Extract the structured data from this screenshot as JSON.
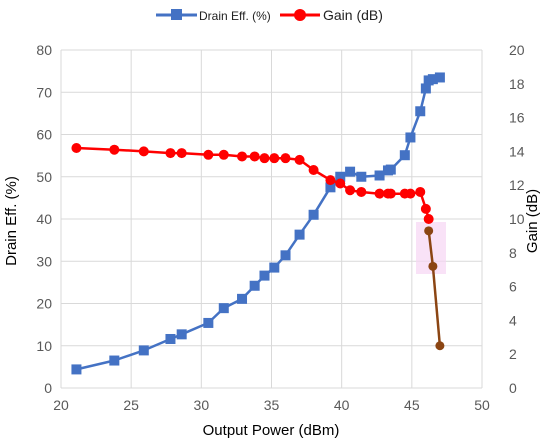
{
  "chart_data": {
    "type": "line",
    "xlabel": "Output Power (dBm)",
    "ylabel_left": "Drain Eff. (%)",
    "ylabel_right": "Gain (dB)",
    "xlim": [
      20,
      50
    ],
    "ylim_left": [
      0,
      80
    ],
    "ylim_right": [
      0,
      20
    ],
    "x_ticks": [
      "20",
      "25",
      "30",
      "35",
      "40",
      "45",
      "50"
    ],
    "y_left_ticks": [
      "0",
      "10",
      "20",
      "30",
      "40",
      "50",
      "60",
      "70",
      "80"
    ],
    "y_right_ticks": [
      "0",
      "2",
      "4",
      "6",
      "8",
      "10",
      "12",
      "14",
      "16",
      "18",
      "20"
    ],
    "grid": true,
    "legend_position": "top",
    "series": [
      {
        "name": "Drain Eff. (%)",
        "axis": "left",
        "color": "#4472c4",
        "marker": "square",
        "x": [
          21.1,
          23.8,
          25.9,
          27.8,
          28.6,
          30.5,
          31.6,
          32.9,
          33.8,
          34.5,
          35.2,
          36.0,
          37.0,
          38.0,
          39.2,
          39.9,
          40.6,
          41.4,
          42.7,
          43.3,
          43.5,
          44.5,
          44.9,
          45.6,
          46.0,
          46.2,
          46.5,
          47.0
        ],
        "y": [
          4.4,
          6.5,
          8.9,
          11.6,
          12.7,
          15.4,
          18.9,
          21.1,
          24.2,
          26.6,
          28.5,
          31.4,
          36.3,
          41.0,
          47.5,
          50.0,
          51.2,
          50.0,
          50.3,
          51.5,
          51.7,
          55.1,
          59.3,
          65.5,
          70.9,
          72.8,
          73.1,
          73.5
        ]
      },
      {
        "name": "Gain (dB)",
        "axis": "right",
        "color": "#ff0000",
        "marker": "circle",
        "x": [
          21.1,
          23.8,
          25.9,
          27.8,
          28.6,
          30.5,
          31.6,
          32.9,
          33.8,
          34.5,
          35.2,
          36.0,
          37.0,
          38.0,
          39.2,
          39.9,
          40.6,
          41.4,
          42.7,
          43.3,
          43.5,
          44.5,
          44.9,
          45.6,
          46.0,
          46.2
        ],
        "y": [
          14.2,
          14.1,
          14.0,
          13.9,
          13.9,
          13.8,
          13.8,
          13.7,
          13.7,
          13.6,
          13.6,
          13.6,
          13.5,
          12.9,
          12.3,
          12.1,
          11.7,
          11.6,
          11.5,
          11.5,
          11.5,
          11.5,
          11.5,
          11.6,
          10.6,
          10.0
        ]
      },
      {
        "name": "",
        "axis": "right",
        "color": "#8b4513",
        "marker": "circle",
        "x": [
          46.2,
          46.5,
          47.0
        ],
        "y": [
          9.3,
          7.2,
          2.5
        ]
      }
    ]
  }
}
